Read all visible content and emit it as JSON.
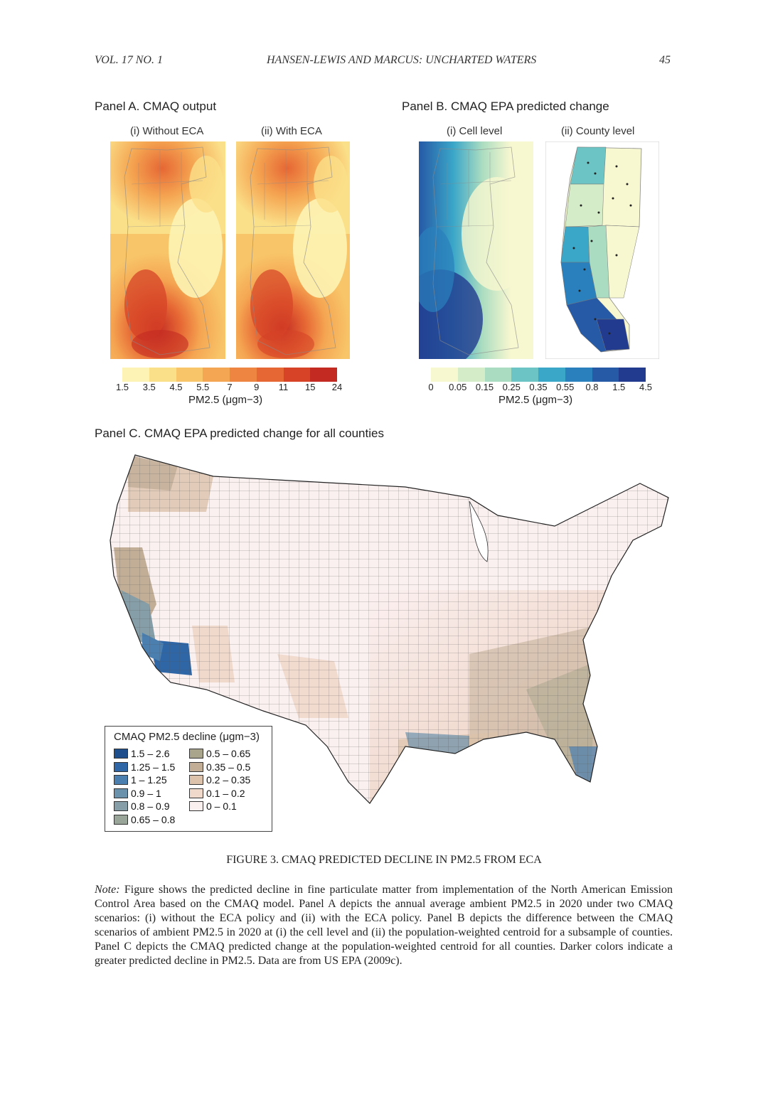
{
  "header": {
    "left": "VOL. 17 NO. 1",
    "center": "HANSEN-LEWIS AND MARCUS: UNCHARTED WATERS",
    "page": "45"
  },
  "panel_a": {
    "title": "Panel A. CMAQ output",
    "sub_i": "(i) Without ECA",
    "sub_ii": "(ii) With ECA",
    "ticks": [
      "1.5",
      "3.5",
      "4.5",
      "5.5",
      "7",
      "9",
      "11",
      "15",
      "24"
    ],
    "colors": [
      "#fdf3b4",
      "#fbe08a",
      "#f8c569",
      "#f5a652",
      "#ee8642",
      "#e66734",
      "#d64327",
      "#c32a22"
    ],
    "units": "PM2.5 (μgm−3)"
  },
  "panel_b": {
    "title": "Panel B. CMAQ EPA predicted change",
    "sub_i": "(i) Cell level",
    "sub_ii": "(ii) County level",
    "ticks": [
      "0",
      "0.05",
      "0.15",
      "0.25",
      "0.35",
      "0.55",
      "0.8",
      "1.5",
      "4.5"
    ],
    "colors": [
      "#f7f7d0",
      "#d4ecc7",
      "#a9dcc0",
      "#6cc4c4",
      "#3aa6c8",
      "#2a80bc",
      "#2659a6",
      "#223b8e"
    ],
    "units": "PM2.5 (μgm−3)"
  },
  "panel_c": {
    "title": "Panel C. CMAQ EPA predicted change for all counties",
    "legend_title": "CMAQ PM2.5 decline (μgm−3)",
    "legend": [
      {
        "label": "1.5 – 2.6",
        "color": "#1f4e8c"
      },
      {
        "label": "1.25 – 1.5",
        "color": "#2e66a6"
      },
      {
        "label": "1 – 1.25",
        "color": "#4a7fb0"
      },
      {
        "label": "0.9 – 1",
        "color": "#6b92ad"
      },
      {
        "label": "0.8 – 0.9",
        "color": "#859ea8"
      },
      {
        "label": "0.65 – 0.8",
        "color": "#9aa59a"
      },
      {
        "label": "0.5 – 0.65",
        "color": "#a8a58c"
      },
      {
        "label": "0.35 – 0.5",
        "color": "#c2ae97"
      },
      {
        "label": "0.2 – 0.35",
        "color": "#dcc2aa"
      },
      {
        "label": "0.1 – 0.2",
        "color": "#f0d8cb"
      },
      {
        "label": "0 – 0.1",
        "color": "#fbf0f0"
      }
    ]
  },
  "caption": "FIGURE 3. CMAQ PREDICTED DECLINE IN PM2.5 FROM ECA",
  "note": {
    "label": "Note:",
    "text": "Figure shows the predicted decline in fine particulate matter from implementation of the North American Emission Control Area based on the CMAQ model. Panel A depicts the annual average ambient PM2.5 in 2020 under two CMAQ scenarios: (i) without the ECA policy and (ii) with the ECA policy. Panel B depicts the difference between the CMAQ scenarios of ambient PM2.5 in 2020 at (i) the cell level and (ii) the population-weighted centroid for a subsample of counties. Panel C depicts the CMAQ predicted change at the population-weighted centroid for all counties. Darker colors indicate a greater predicted decline in PM2.5. Data are from US EPA (2009c)."
  }
}
